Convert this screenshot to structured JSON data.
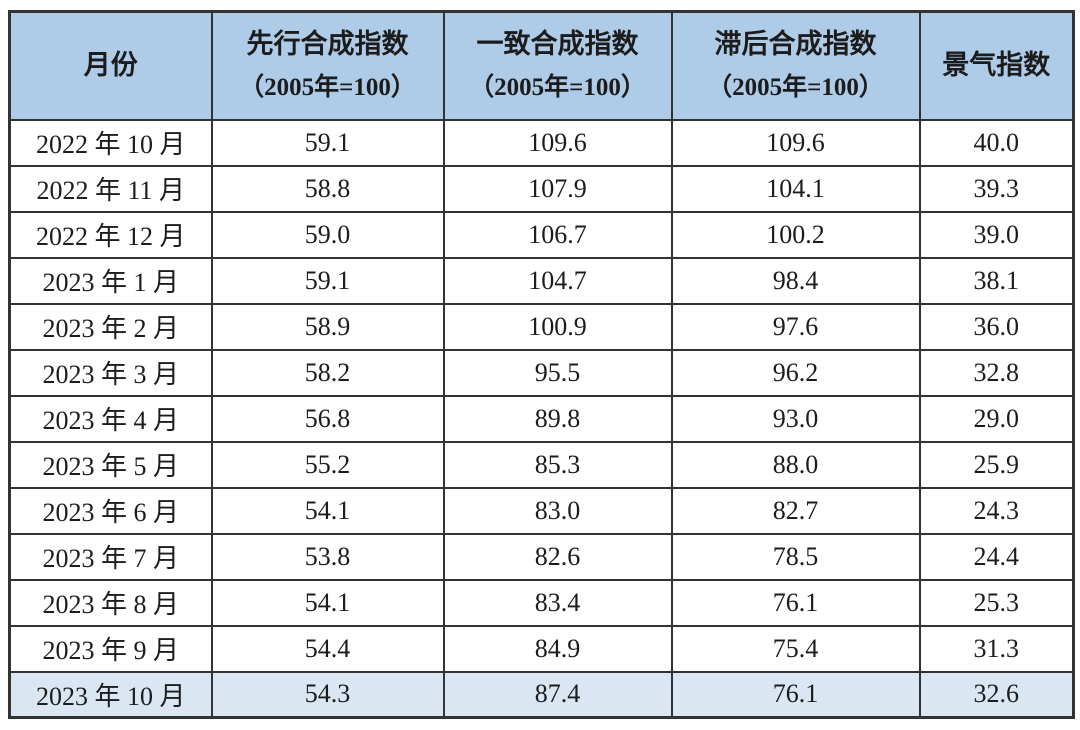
{
  "colors": {
    "header_bg": "#aecbe8",
    "highlight_row_bg": "#dae7f3",
    "border": "#333333",
    "text": "#1c1c1c",
    "page_bg": "#ffffff"
  },
  "table": {
    "columns": [
      {
        "key": "month",
        "label": "月份",
        "sub": ""
      },
      {
        "key": "leading",
        "label": "先行合成指数",
        "sub": "（2005年=100）"
      },
      {
        "key": "coincident",
        "label": "一致合成指数",
        "sub": "（2005年=100）"
      },
      {
        "key": "lagging",
        "label": "滞后合成指数",
        "sub": "（2005年=100）"
      },
      {
        "key": "prosperity",
        "label": "景气指数",
        "sub": ""
      }
    ],
    "rows": [
      {
        "month": "2022 年 10 月",
        "leading": "59.1",
        "coincident": "109.6",
        "lagging": "109.6",
        "prosperity": "40.0",
        "highlight": false
      },
      {
        "month": "2022 年 11 月",
        "leading": "58.8",
        "coincident": "107.9",
        "lagging": "104.1",
        "prosperity": "39.3",
        "highlight": false
      },
      {
        "month": "2022 年 12 月",
        "leading": "59.0",
        "coincident": "106.7",
        "lagging": "100.2",
        "prosperity": "39.0",
        "highlight": false
      },
      {
        "month": "2023 年 1 月",
        "leading": "59.1",
        "coincident": "104.7",
        "lagging": "98.4",
        "prosperity": "38.1",
        "highlight": false
      },
      {
        "month": "2023 年 2 月",
        "leading": "58.9",
        "coincident": "100.9",
        "lagging": "97.6",
        "prosperity": "36.0",
        "highlight": false
      },
      {
        "month": "2023 年 3 月",
        "leading": "58.2",
        "coincident": "95.5",
        "lagging": "96.2",
        "prosperity": "32.8",
        "highlight": false
      },
      {
        "month": "2023 年 4 月",
        "leading": "56.8",
        "coincident": "89.8",
        "lagging": "93.0",
        "prosperity": "29.0",
        "highlight": false
      },
      {
        "month": "2023 年 5 月",
        "leading": "55.2",
        "coincident": "85.3",
        "lagging": "88.0",
        "prosperity": "25.9",
        "highlight": false
      },
      {
        "month": "2023 年 6 月",
        "leading": "54.1",
        "coincident": "83.0",
        "lagging": "82.7",
        "prosperity": "24.3",
        "highlight": false
      },
      {
        "month": "2023 年 7 月",
        "leading": "53.8",
        "coincident": "82.6",
        "lagging": "78.5",
        "prosperity": "24.4",
        "highlight": false
      },
      {
        "month": "2023 年 8 月",
        "leading": "54.1",
        "coincident": "83.4",
        "lagging": "76.1",
        "prosperity": "25.3",
        "highlight": false
      },
      {
        "month": "2023 年 9 月",
        "leading": "54.4",
        "coincident": "84.9",
        "lagging": "75.4",
        "prosperity": "31.3",
        "highlight": false
      },
      {
        "month": "2023 年 10 月",
        "leading": "54.3",
        "coincident": "87.4",
        "lagging": "76.1",
        "prosperity": "32.6",
        "highlight": true
      }
    ]
  },
  "chart_data": {
    "type": "table",
    "title": "",
    "columns": [
      "月份",
      "先行合成指数（2005年=100）",
      "一致合成指数（2005年=100）",
      "滞后合成指数（2005年=100）",
      "景气指数"
    ],
    "rows": [
      [
        "2022年10月",
        59.1,
        109.6,
        109.6,
        40.0
      ],
      [
        "2022年11月",
        58.8,
        107.9,
        104.1,
        39.3
      ],
      [
        "2022年12月",
        59.0,
        106.7,
        100.2,
        39.0
      ],
      [
        "2023年1月",
        59.1,
        104.7,
        98.4,
        38.1
      ],
      [
        "2023年2月",
        58.9,
        100.9,
        97.6,
        36.0
      ],
      [
        "2023年3月",
        58.2,
        95.5,
        96.2,
        32.8
      ],
      [
        "2023年4月",
        56.8,
        89.8,
        93.0,
        29.0
      ],
      [
        "2023年5月",
        55.2,
        85.3,
        88.0,
        25.9
      ],
      [
        "2023年6月",
        54.1,
        83.0,
        82.7,
        24.3
      ],
      [
        "2023年7月",
        53.8,
        82.6,
        78.5,
        24.4
      ],
      [
        "2023年8月",
        54.1,
        83.4,
        76.1,
        25.3
      ],
      [
        "2023年9月",
        54.4,
        84.9,
        75.4,
        31.3
      ],
      [
        "2023年10月",
        54.3,
        87.4,
        76.1,
        32.6
      ]
    ],
    "highlighted_row": "2023年10月",
    "layout_hints": {
      "header_style": "blue-filled",
      "grid": "full-borders",
      "last_row_highlighted": true
    }
  }
}
